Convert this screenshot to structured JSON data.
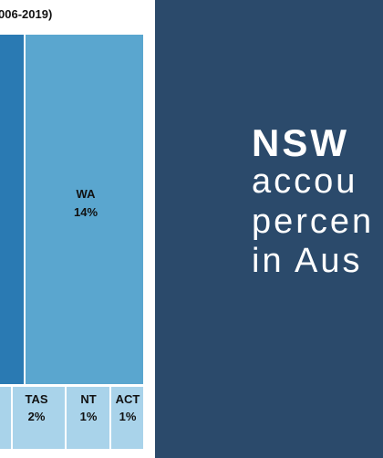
{
  "colors": {
    "background": "#2b4a6b",
    "panel": "#ffffff",
    "large_state": "#2a7ab3",
    "wa": "#5aa6cf",
    "small_state": "#a9d3ea",
    "cell_border": "#ffffff"
  },
  "chart_data": {
    "type": "treemap",
    "title": "006-2019)",
    "items": [
      {
        "label": "",
        "value": "",
        "color": "#2a7ab3"
      },
      {
        "label": "WA",
        "value": "14%",
        "color": "#5aa6cf"
      },
      {
        "label": "TAS",
        "value": "2%",
        "color": "#a9d3ea"
      },
      {
        "label": "NT",
        "value": "1%",
        "color": "#a9d3ea"
      },
      {
        "label": "ACT",
        "value": "1%",
        "color": "#a9d3ea"
      }
    ]
  },
  "headline": {
    "strong": "NSW",
    "lines": [
      "accou",
      "percen",
      "in Aus"
    ]
  }
}
